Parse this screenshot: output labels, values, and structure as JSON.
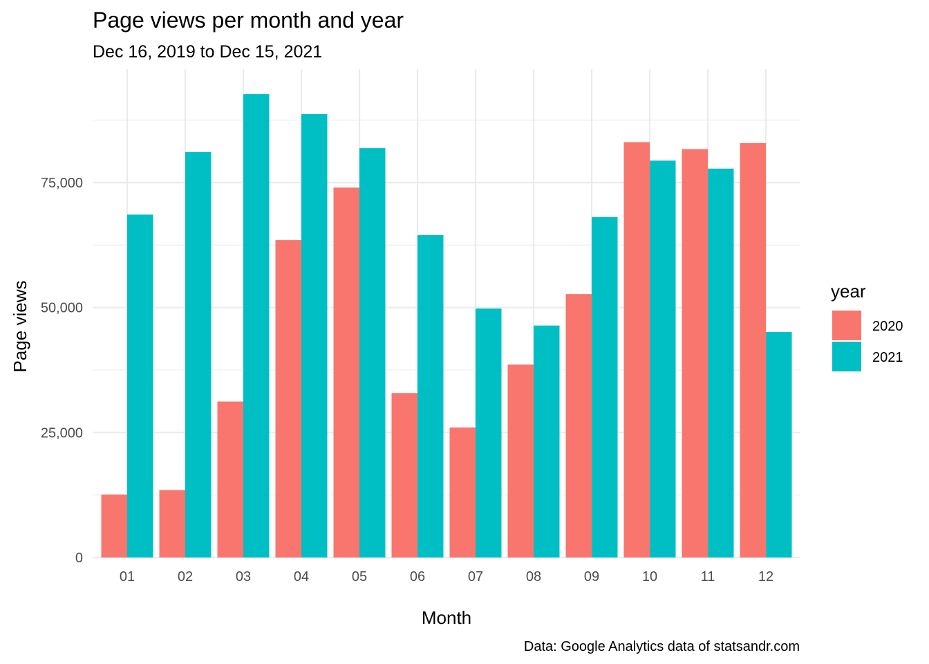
{
  "chart_data": {
    "type": "bar",
    "title": "Page views per month and year",
    "subtitle": "Dec 16, 2019 to Dec 15, 2021",
    "xlabel": "Month",
    "ylabel": "Page views",
    "caption": "Data: Google Analytics data of statsandr.com",
    "categories": [
      "01",
      "02",
      "03",
      "04",
      "05",
      "06",
      "07",
      "08",
      "09",
      "10",
      "11",
      "12"
    ],
    "series": [
      {
        "name": "2020",
        "color": "#F8766D",
        "values": [
          12600,
          13500,
          31200,
          63500,
          74000,
          32900,
          26000,
          38600,
          52700,
          83100,
          81700,
          82900
        ]
      },
      {
        "name": "2021",
        "color": "#00BFC4",
        "values": [
          68600,
          81100,
          92700,
          88700,
          81900,
          64500,
          49800,
          46400,
          68100,
          79400,
          77800,
          45100
        ]
      }
    ],
    "yticks": [
      0,
      25000,
      50000,
      75000
    ],
    "ytick_labels": [
      "0",
      "25,000",
      "50,000",
      "75,000"
    ],
    "ylim": [
      0,
      96000
    ],
    "legend": {
      "title": "year",
      "position": "right"
    },
    "grid": true
  }
}
